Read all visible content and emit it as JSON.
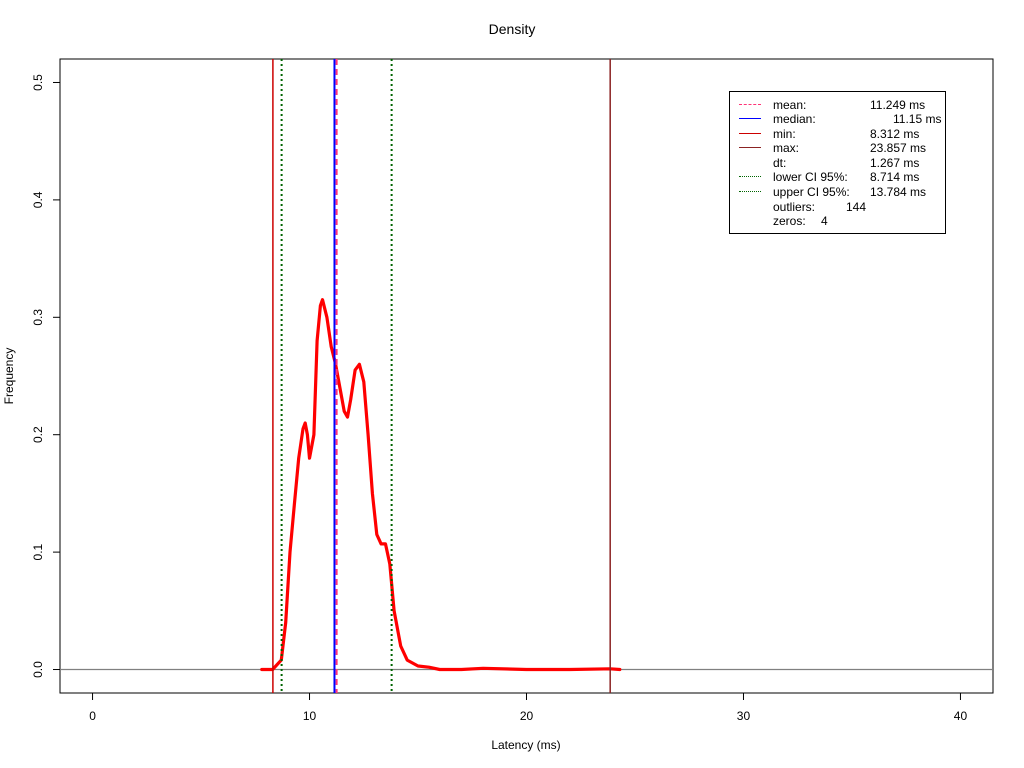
{
  "chart_data": {
    "type": "line",
    "title": "Density",
    "xlabel": "Latency (ms)",
    "ylabel": "Frequency",
    "xlim": [
      -1.5,
      41.5
    ],
    "ylim": [
      -0.02,
      0.52
    ],
    "x_ticks": [
      "0",
      "10",
      "20",
      "30",
      "40"
    ],
    "y_ticks": [
      "0.0",
      "0.1",
      "0.2",
      "0.3",
      "0.4",
      "0.5"
    ],
    "grid": false,
    "legend_position": "top-right",
    "series": [
      {
        "color": "#ff0000",
        "x": [
          7.8,
          8.3,
          8.7,
          8.9,
          9.1,
          9.3,
          9.5,
          9.7,
          9.8,
          9.9,
          10.0,
          10.2,
          10.35,
          10.5,
          10.6,
          10.8,
          11.0,
          11.2,
          11.4,
          11.6,
          11.75,
          11.9,
          12.1,
          12.3,
          12.5,
          12.7,
          12.9,
          13.1,
          13.3,
          13.5,
          13.7,
          13.9,
          14.2,
          14.5,
          15.0,
          15.5,
          16.0,
          17.0,
          18.0,
          20.0,
          22.0,
          23.857,
          24.3
        ],
        "y": [
          0.0,
          0.0,
          0.008,
          0.04,
          0.1,
          0.14,
          0.18,
          0.205,
          0.21,
          0.2,
          0.18,
          0.2,
          0.28,
          0.31,
          0.315,
          0.3,
          0.275,
          0.26,
          0.24,
          0.22,
          0.215,
          0.23,
          0.255,
          0.26,
          0.245,
          0.2,
          0.15,
          0.115,
          0.107,
          0.107,
          0.09,
          0.05,
          0.02,
          0.008,
          0.003,
          0.002,
          0.0,
          0.0,
          0.001,
          0.0,
          0.0,
          0.0006,
          0.0
        ]
      }
    ],
    "vlines": [
      {
        "key": "min",
        "x": 8.312,
        "color": "#cc0000",
        "dash": "solid"
      },
      {
        "key": "lower_ci",
        "x": 8.714,
        "color": "#006400",
        "dash": "dotted"
      },
      {
        "key": "median",
        "x": 11.15,
        "color": "#0000ff",
        "dash": "solid"
      },
      {
        "key": "mean",
        "x": 11.249,
        "color": "#ff3377",
        "dash": "dashed"
      },
      {
        "key": "upper_ci",
        "x": 13.784,
        "color": "#006400",
        "dash": "dotted"
      },
      {
        "key": "max",
        "x": 23.857,
        "color": "#8b2323",
        "dash": "solid"
      }
    ],
    "hline": {
      "y": 0,
      "color": "#808080"
    },
    "legend": {
      "mean": {
        "label": "mean:",
        "value": "11.249 ms",
        "color": "#ff3377",
        "dash": "dashed"
      },
      "median": {
        "label": "median:",
        "value": "11.15 ms",
        "color": "#0000ff",
        "dash": "solid"
      },
      "min": {
        "label": "min:",
        "value": "8.312 ms",
        "color": "#cc0000",
        "dash": "solid"
      },
      "max": {
        "label": "max:",
        "value": "23.857 ms",
        "color": "#8b2323",
        "dash": "solid"
      },
      "dt": {
        "label": "dt:",
        "value": "1.267 ms"
      },
      "lower_ci": {
        "label": "lower CI 95%:",
        "value": "8.714 ms",
        "color": "#006400",
        "dash": "dotted"
      },
      "upper_ci": {
        "label": "upper CI 95%:",
        "value": "13.784 ms",
        "color": "#006400",
        "dash": "dotted"
      },
      "outliers": {
        "label": "outliers:",
        "value": "144"
      },
      "zeros": {
        "label": "zeros:",
        "value": "4"
      }
    }
  }
}
